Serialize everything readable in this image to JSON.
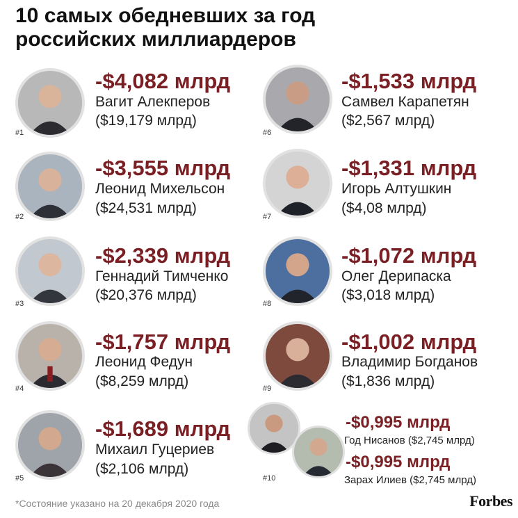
{
  "title": {
    "line1": "10 самых обедневших за год",
    "line2": "российских миллиардеров"
  },
  "entries": [
    {
      "rank": "#1",
      "loss": "-$4,082 млрд",
      "name": "Вагит Алекперов",
      "worth": "($19,179 млрд)"
    },
    {
      "rank": "#2",
      "loss": "-$3,555 млрд",
      "name": "Леонид Михельсон",
      "worth": "($24,531 млрд)"
    },
    {
      "rank": "#3",
      "loss": "-$2,339 млрд",
      "name": "Геннадий Тимченко",
      "worth": "($20,376 млрд)"
    },
    {
      "rank": "#4",
      "loss": "-$1,757 млрд",
      "name": "Леонид Федун",
      "worth": "($8,259 млрд)"
    },
    {
      "rank": "#5",
      "loss": "-$1,689 млрд",
      "name": "Михаил Гуцериев",
      "worth": "($2,106 млрд)"
    },
    {
      "rank": "#6",
      "loss": "-$1,533 млрд",
      "name": "Самвел Карапетян",
      "worth": "($2,567 млрд)"
    },
    {
      "rank": "#7",
      "loss": "-$1,331 млрд",
      "name": "Игорь Алтушкин",
      "worth": "($4,08 млрд)"
    },
    {
      "rank": "#8",
      "loss": "-$1,072 млрд",
      "name": "Олег Дерипаска",
      "worth": "($3,018 млрд)"
    },
    {
      "rank": "#9",
      "loss": "-$1,002 млрд",
      "name": "Владимир Богданов",
      "worth": "($1,836 млрд)"
    }
  ],
  "tenth": {
    "rank": "#10",
    "a": {
      "loss": "-$0,995 млрд",
      "line": "Год Нисанов ($2,745 млрд)"
    },
    "b": {
      "loss": "-$0,995 млрд",
      "line": "Зарах Илиев ($2,745 млрд)"
    }
  },
  "footnote": "*Состояние указано на 20 декабря 2020 года",
  "brand": "Forbes",
  "colors": {
    "loss": "#7a1f24",
    "text": "#222222",
    "footnote": "#8a8a8a"
  }
}
